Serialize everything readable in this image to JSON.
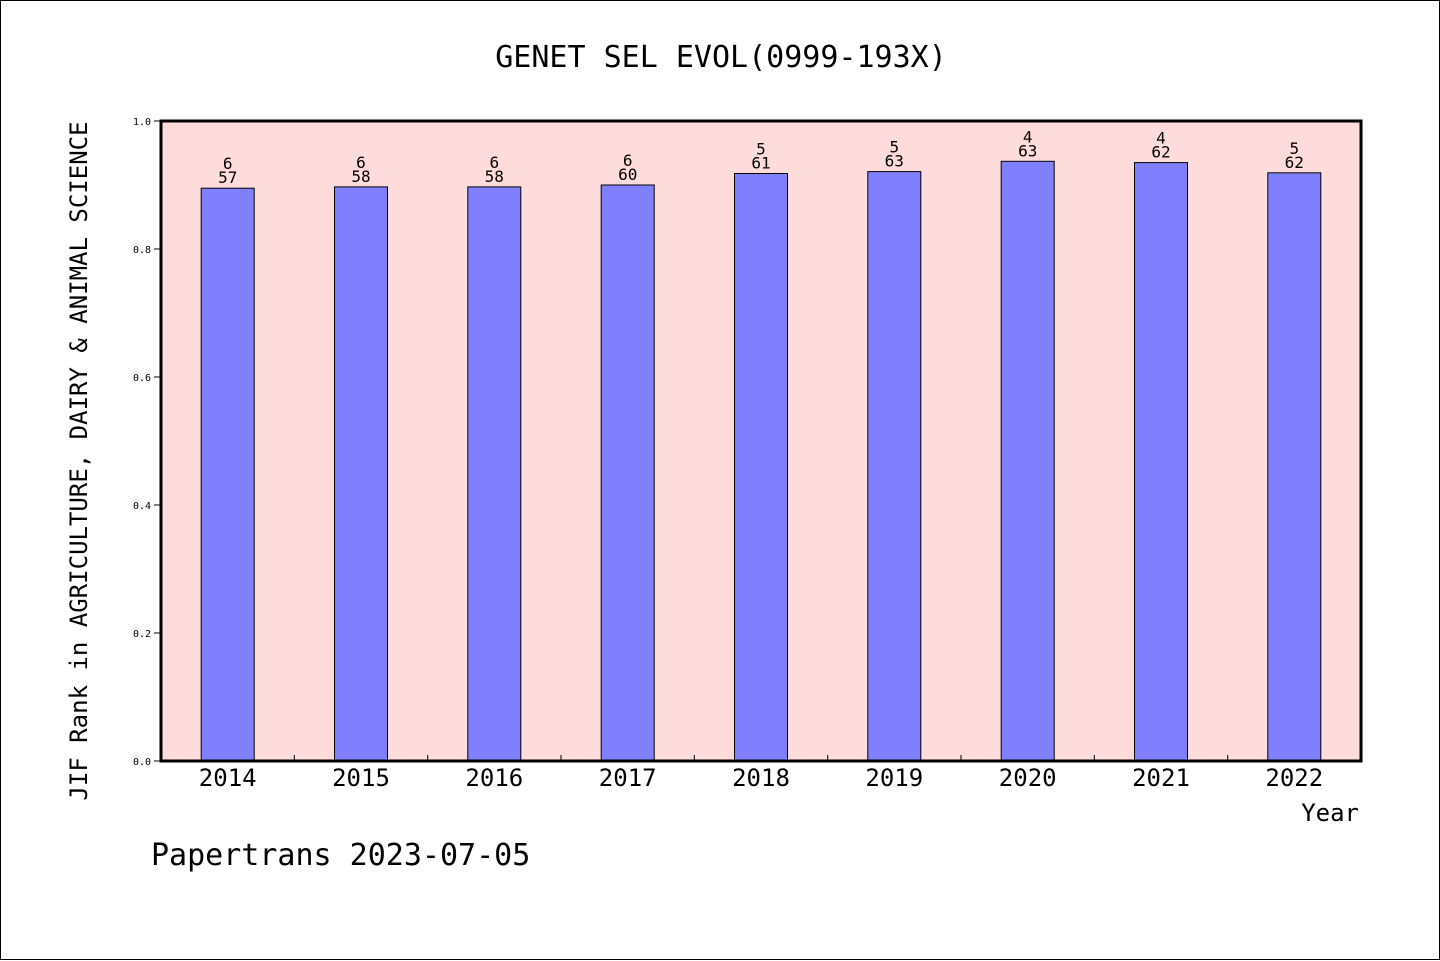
{
  "footer": "Papertrans 2023-07-05",
  "chart_data": {
    "type": "bar",
    "title": "GENET SEL EVOL(0999-193X)",
    "xlabel": "Year",
    "ylabel": "JIF Rank in AGRICULTURE, DAIRY & ANIMAL SCIENCE",
    "ylim": [
      0,
      1.0
    ],
    "yticks": [
      "0.0",
      "0.2",
      "0.4",
      "0.6",
      "0.8",
      "1.0"
    ],
    "grid": false,
    "categories": [
      "2014",
      "2015",
      "2016",
      "2017",
      "2018",
      "2019",
      "2020",
      "2021",
      "2022"
    ],
    "values": [
      0.895,
      0.897,
      0.897,
      0.9,
      0.918,
      0.921,
      0.937,
      0.935,
      0.919
    ],
    "labels": [
      {
        "rank": "6",
        "total": "57"
      },
      {
        "rank": "6",
        "total": "58"
      },
      {
        "rank": "6",
        "total": "58"
      },
      {
        "rank": "6",
        "total": "60"
      },
      {
        "rank": "5",
        "total": "61"
      },
      {
        "rank": "5",
        "total": "63"
      },
      {
        "rank": "4",
        "total": "63"
      },
      {
        "rank": "4",
        "total": "62"
      },
      {
        "rank": "5",
        "total": "62"
      }
    ],
    "colors": {
      "bar": "#8080ff",
      "plot_background": "#ffdcdc",
      "axis": "#000000"
    }
  }
}
